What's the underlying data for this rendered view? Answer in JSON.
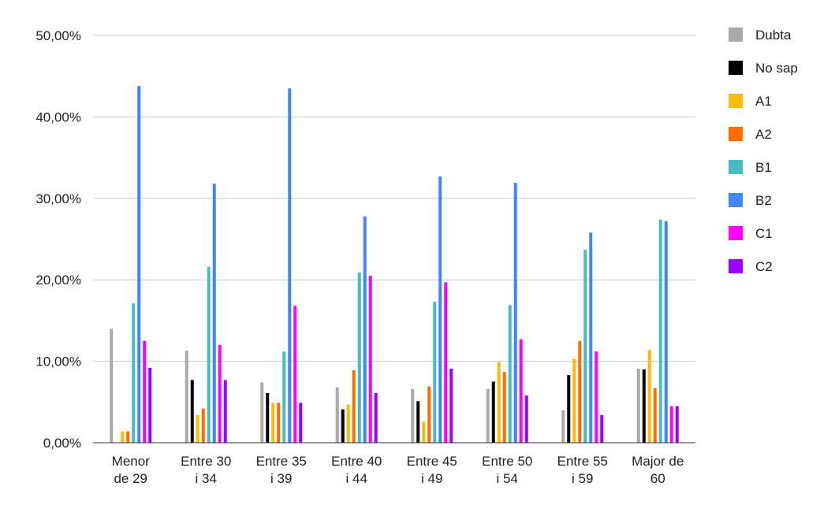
{
  "chart_data": {
    "type": "bar",
    "title": "",
    "xlabel": "",
    "ylabel": "",
    "ylim": [
      0,
      50
    ],
    "yticks": [
      0,
      10,
      20,
      30,
      40,
      50
    ],
    "ytick_labels": [
      "0,00%",
      "10,00%",
      "20,00%",
      "30,00%",
      "40,00%",
      "50,00%"
    ],
    "grid": true,
    "legend_position": "right",
    "categories": [
      [
        "Menor",
        "de 29"
      ],
      [
        "Entre 30",
        "i 34"
      ],
      [
        "Entre 35",
        "i 39"
      ],
      [
        "Entre 40",
        "i 44"
      ],
      [
        "Entre 45",
        "i 49"
      ],
      [
        "Entre 50",
        "i 54"
      ],
      [
        "Entre 55",
        "i 59"
      ],
      [
        "Major de",
        "60"
      ]
    ],
    "series": [
      {
        "name": "Dubta",
        "color": "#aaaaaa",
        "values": [
          14.0,
          11.3,
          7.4,
          6.8,
          6.6,
          6.6,
          4.0,
          9.1
        ]
      },
      {
        "name": "No sap",
        "color": "#000000",
        "values": [
          0.0,
          7.7,
          6.1,
          4.1,
          5.1,
          7.5,
          8.3,
          9.0
        ]
      },
      {
        "name": "A1",
        "color": "#fbbc04",
        "values": [
          1.4,
          3.4,
          4.9,
          4.7,
          2.6,
          9.9,
          10.3,
          11.4
        ]
      },
      {
        "name": "A2",
        "color": "#ff6d01",
        "values": [
          1.4,
          4.2,
          4.9,
          8.9,
          6.9,
          8.7,
          12.5,
          6.7
        ]
      },
      {
        "name": "B1",
        "color": "#46bdc6",
        "values": [
          17.1,
          21.6,
          11.2,
          20.9,
          17.3,
          16.9,
          23.7,
          27.4
        ]
      },
      {
        "name": "B2",
        "color": "#4285f4",
        "values": [
          43.8,
          31.8,
          43.5,
          27.8,
          32.7,
          31.9,
          25.8,
          27.2
        ]
      },
      {
        "name": "C1",
        "color": "#ff00ff",
        "values": [
          12.5,
          12.0,
          16.8,
          20.5,
          19.7,
          12.7,
          11.2,
          4.5
        ]
      },
      {
        "name": "C2",
        "color": "#9900ff",
        "values": [
          9.2,
          7.7,
          4.9,
          6.1,
          9.1,
          5.8,
          3.4,
          4.5
        ]
      }
    ]
  }
}
